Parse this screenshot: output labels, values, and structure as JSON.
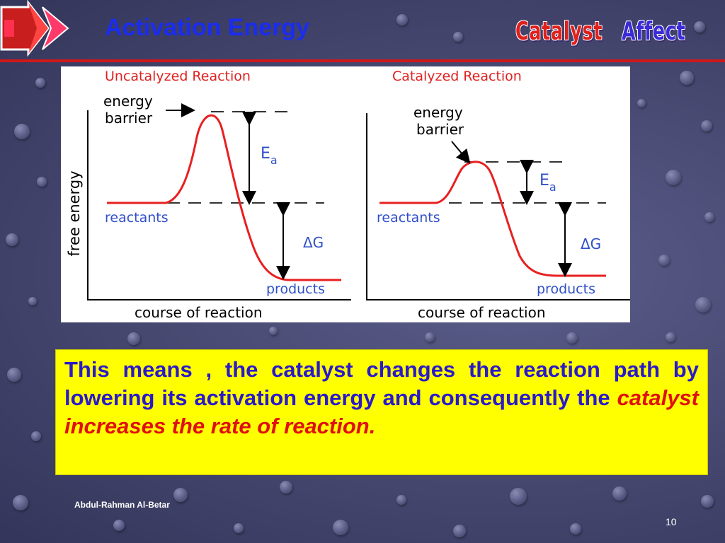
{
  "slide": {
    "title": "Activation Energy",
    "wordart": {
      "word1": "Catalyst",
      "word2": "Affect"
    },
    "author": "Abdul-Rahman Al-Betar",
    "page_number": "10"
  },
  "diagram": {
    "y_axis_label": "free energy",
    "left": {
      "title": "Uncatalyzed Reaction",
      "barrier_label_line1": "energy",
      "barrier_label_line2": "barrier",
      "ea_label": "E",
      "ea_subscript": "a",
      "reactants_label": "reactants",
      "delta_g_label": "ΔG",
      "products_label": "products",
      "x_axis_label": "course of reaction"
    },
    "right": {
      "title": "Catalyzed Reaction",
      "barrier_label_line1": "energy",
      "barrier_label_line2": "barrier",
      "ea_label": "E",
      "ea_subscript": "a",
      "reactants_label": "reactants",
      "delta_g_label": "ΔG",
      "products_label": "products",
      "x_axis_label": "course of reaction"
    },
    "colors": {
      "title": "#e02020",
      "curve": "#e82020",
      "level_label": "#3050c8",
      "text": "#000000"
    }
  },
  "body_text": {
    "plain": "This means , the catalyst changes the reaction path by lowering its activation energy and consequently the ",
    "emphasis": "catalyst increases the rate of reaction."
  }
}
